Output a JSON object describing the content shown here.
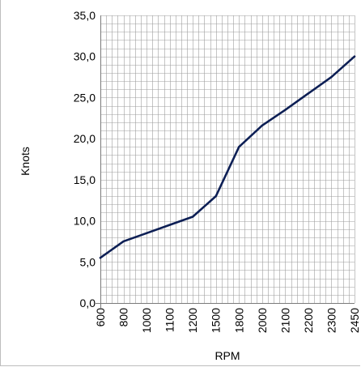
{
  "chart_data": {
    "type": "line",
    "title": "",
    "xlabel": "RPM",
    "ylabel": "Knots",
    "categories": [
      "600",
      "800",
      "1000",
      "1100",
      "1200",
      "1500",
      "1800",
      "2000",
      "2100",
      "2200",
      "2300",
      "2450"
    ],
    "series": [
      {
        "values": [
          5.5,
          7.5,
          8.5,
          9.5,
          10.5,
          13.0,
          19.0,
          21.6,
          23.5,
          25.5,
          27.5,
          30.0
        ]
      }
    ],
    "ylim": [
      0,
      35
    ],
    "y_ticks": [
      "0,0",
      "5,0",
      "10,0",
      "15,0",
      "20,0",
      "25,0",
      "30,0",
      "35,0"
    ],
    "minor_y_step": 1,
    "grid": true,
    "legend": "none",
    "colors": {
      "line": "#0d1f55",
      "grid": "#9e9e9e",
      "axis": "#7a7a7a"
    }
  }
}
